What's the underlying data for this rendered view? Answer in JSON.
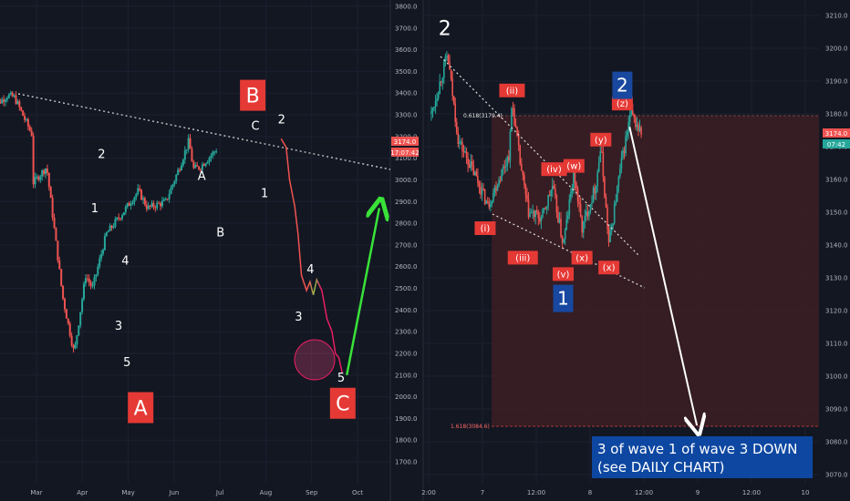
{
  "colors": {
    "background": "#131722",
    "up": "#26a69a",
    "down": "#ef5350",
    "grid": "#1f2433",
    "red_label": "#e53935",
    "blue_label": "#1848a0",
    "zone": "#3a1e24"
  },
  "chart_data": [
    {
      "type": "candlestick",
      "panel": "left",
      "x_ticks": [
        "Mar",
        "Apr",
        "May",
        "Jun",
        "Jul",
        "Aug",
        "Sep",
        "Oct"
      ],
      "y_ticks": [
        "3800.0",
        "3700.0",
        "3600.0",
        "3500.0",
        "3400.0",
        "3300.0",
        "3200.0",
        "3100.0",
        "3000.0",
        "2900.0",
        "2800.0",
        "2700.0",
        "2600.0",
        "2500.0",
        "2400.0",
        "2300.0",
        "2200.0",
        "2100.0",
        "2000.0",
        "1900.0",
        "1800.0",
        "1700.0"
      ],
      "ylim": [
        1640,
        3810
      ],
      "price_badges": [
        "3174.0",
        "17:07:42"
      ],
      "wave_labels": [
        {
          "text": "A",
          "style": "red-box",
          "x": 3.2,
          "y": 1950
        },
        {
          "text": "B",
          "style": "red-box",
          "x": 6.5,
          "y": 3390
        },
        {
          "text": "C",
          "style": "red-box",
          "x": 9.15,
          "y": 1970
        },
        {
          "text": "1",
          "x": 1.85,
          "y": 2850
        },
        {
          "text": "2",
          "x": 2.05,
          "y": 3100
        },
        {
          "text": "3",
          "x": 2.55,
          "y": 2310
        },
        {
          "text": "4",
          "x": 2.75,
          "y": 2610
        },
        {
          "text": "5",
          "x": 2.8,
          "y": 2140
        },
        {
          "text": "A",
          "x": 5.0,
          "y": 3000
        },
        {
          "text": "B",
          "x": 5.55,
          "y": 2740
        },
        {
          "text": "C",
          "x": 6.58,
          "y": 3230
        },
        {
          "text": "1",
          "x": 6.85,
          "y": 2920
        },
        {
          "text": "2",
          "x": 7.35,
          "y": 3260
        },
        {
          "text": "3",
          "x": 7.85,
          "y": 2350
        },
        {
          "text": "4",
          "x": 8.2,
          "y": 2570
        },
        {
          "text": "5",
          "x": 9.1,
          "y": 2070
        }
      ],
      "projection": {
        "from": [
          9.0,
          2100
        ],
        "to": [
          9.5,
          2870
        ],
        "color": "#39e239"
      }
    },
    {
      "type": "candlestick",
      "panel": "right",
      "x_ticks": [
        "2:00",
        "7",
        "12:00",
        "8",
        "12:00",
        "9",
        "12:00",
        "10"
      ],
      "y_ticks": [
        "3210.0",
        "3200.0",
        "3190.0",
        "3180.0",
        "3170.0",
        "3160.0",
        "3150.0",
        "3140.0",
        "3130.0",
        "3120.0",
        "3110.0",
        "3100.0",
        "3090.0",
        "3080.0",
        "3070.0"
      ],
      "ylim": [
        3068,
        3213
      ],
      "price_badges": [
        "3174.0",
        "07:42"
      ],
      "level_labels": [
        "0.618(3179.4)",
        "1.618(3084.6)"
      ],
      "levels": [
        3179.4,
        3084.6
      ],
      "wave_labels": [
        {
          "text": "2",
          "style": "plain",
          "x": 0.3,
          "y": 3204
        },
        {
          "text": "(i)",
          "style": "red-small",
          "x": 1.05,
          "y": 3145
        },
        {
          "text": "(ii)",
          "style": "red-small",
          "x": 1.55,
          "y": 3187
        },
        {
          "text": "(iii)",
          "style": "red-small",
          "x": 1.75,
          "y": 3136
        },
        {
          "text": "(iv)",
          "style": "red-small",
          "x": 2.33,
          "y": 3163
        },
        {
          "text": "(v)",
          "style": "red-small",
          "x": 2.5,
          "y": 3131
        },
        {
          "text": "1",
          "style": "blue-box",
          "x": 2.5,
          "y": 3124
        },
        {
          "text": "(w)",
          "style": "red-small",
          "x": 2.7,
          "y": 3164
        },
        {
          "text": "(x)",
          "style": "red-small",
          "x": 2.85,
          "y": 3136
        },
        {
          "text": "(y)",
          "style": "red-small",
          "x": 3.2,
          "y": 3172
        },
        {
          "text": "(x)",
          "style": "red-small",
          "x": 3.35,
          "y": 3133
        },
        {
          "text": "(z)",
          "style": "red-small",
          "x": 3.6,
          "y": 3183
        },
        {
          "text": "2",
          "style": "blue-box",
          "x": 3.6,
          "y": 3189
        }
      ],
      "projection": {
        "from": [
          3.7,
          3176
        ],
        "to": [
          4.9,
          3085
        ],
        "color": "#ffffff"
      }
    }
  ],
  "annotation": {
    "line1": "3 of wave 1 of wave 3 DOWN",
    "line2": "(see DAILY CHART)"
  }
}
